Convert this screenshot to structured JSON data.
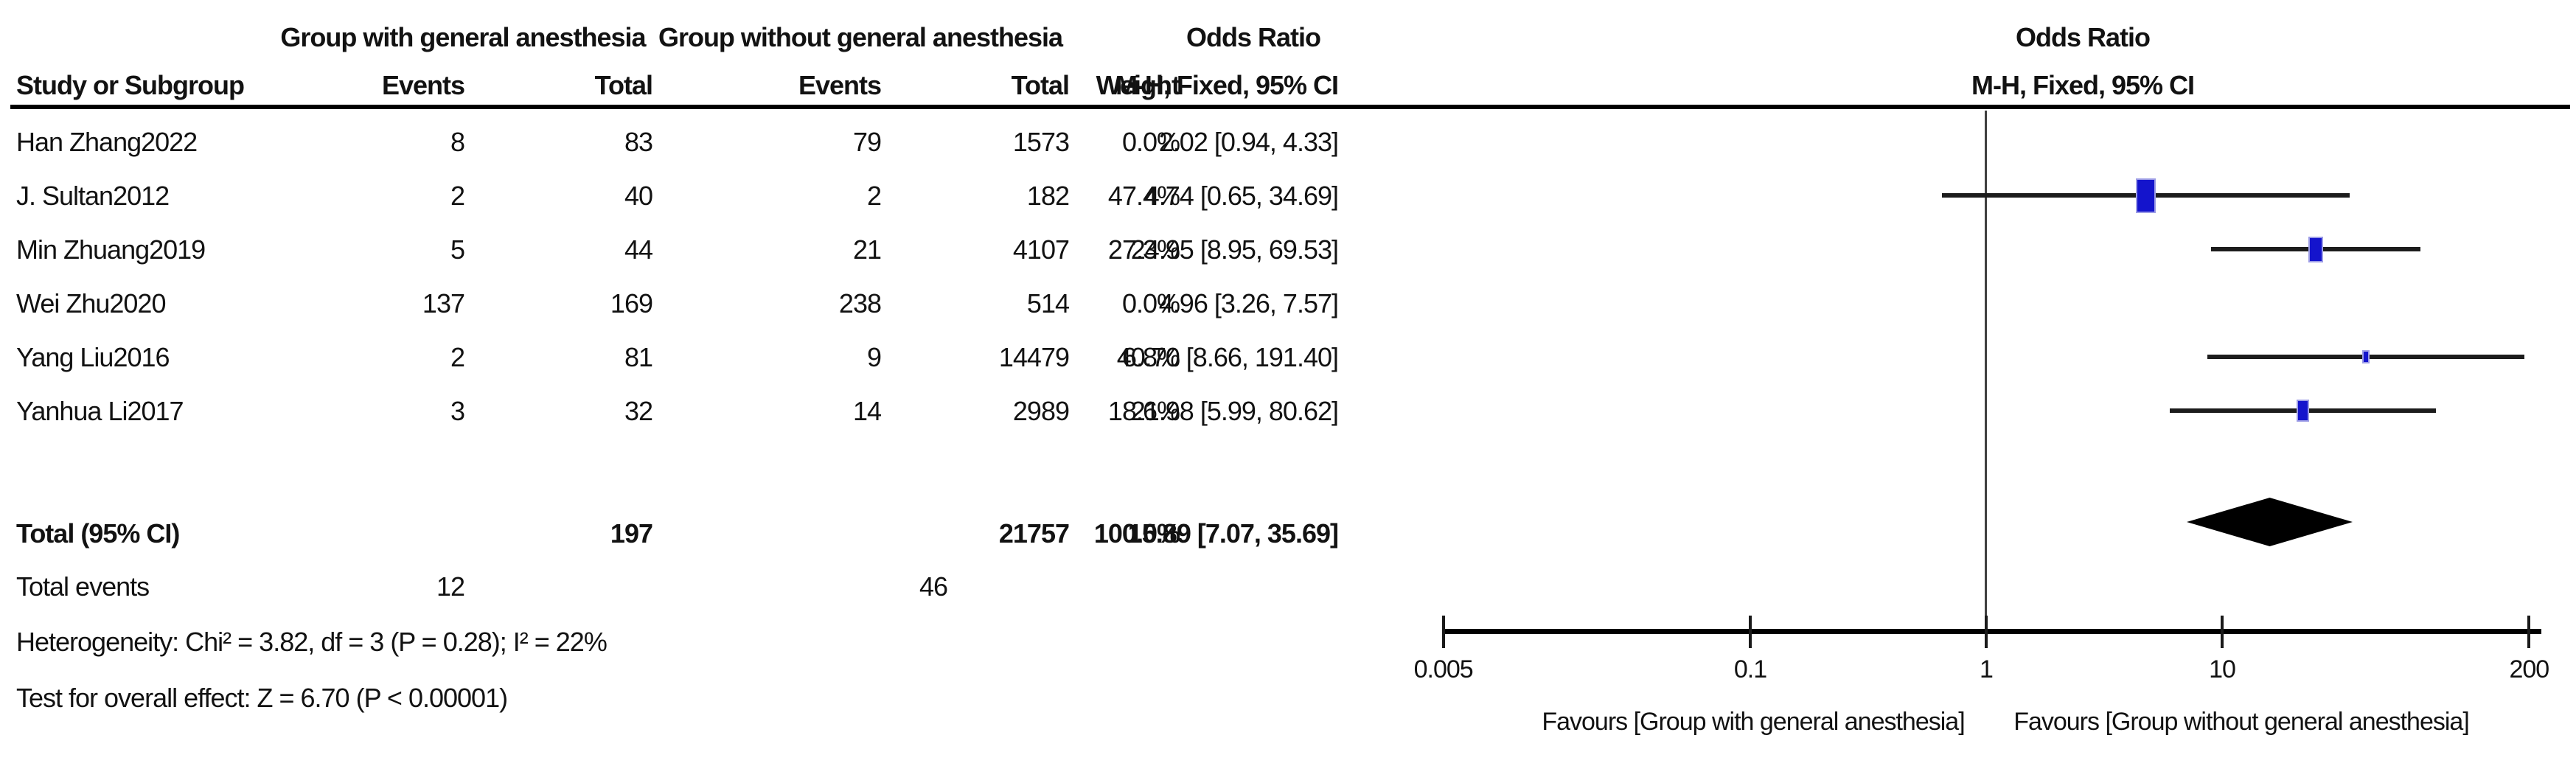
{
  "header": {
    "group1": "Group with general anesthesia",
    "group2": "Group without general anesthesia",
    "odds_ratio": "Odds Ratio",
    "method": "M-H, Fixed, 95% CI",
    "col_study": "Study or Subgroup",
    "col_events": "Events",
    "col_total": "Total",
    "col_weight": "Weight"
  },
  "rows": [
    {
      "study": "Han Zhang2022",
      "e1": "8",
      "t1": "83",
      "e2": "79",
      "t2": "1573",
      "weight": "0.0%",
      "or_text": "2.02 [0.94, 4.33]"
    },
    {
      "study": "J. Sultan2012",
      "e1": "2",
      "t1": "40",
      "e2": "2",
      "t2": "182",
      "weight": "47.4%",
      "or_text": "4.74 [0.65, 34.69]"
    },
    {
      "study": "Min Zhuang2019",
      "e1": "5",
      "t1": "44",
      "e2": "21",
      "t2": "4107",
      "weight": "27.3%",
      "or_text": "24.95 [8.95, 69.53]"
    },
    {
      "study": "Wei Zhu2020",
      "e1": "137",
      "t1": "169",
      "e2": "238",
      "t2": "514",
      "weight": "0.0%",
      "or_text": "4.96 [3.26, 7.57]"
    },
    {
      "study": "Yang Liu2016",
      "e1": "2",
      "t1": "81",
      "e2": "9",
      "t2": "14479",
      "weight": "6.8%",
      "or_text": "40.70 [8.66, 191.40]"
    },
    {
      "study": "Yanhua Li2017",
      "e1": "3",
      "t1": "32",
      "e2": "14",
      "t2": "2989",
      "weight": "18.6%",
      "or_text": "21.98 [5.99, 80.62]"
    }
  ],
  "total": {
    "label": "Total (95% CI)",
    "t1": "197",
    "t2": "21757",
    "weight": "100.0%",
    "or_text": "15.89 [7.07, 35.69]"
  },
  "total_events": {
    "label": "Total events",
    "e1": "12",
    "e2": "46"
  },
  "heterogeneity": "Heterogeneity: Chi² = 3.82, df = 3 (P = 0.28); I² = 22%",
  "overall_effect": "Test for overall effect: Z = 6.70 (P < 0.00001)",
  "favours_left": "Favours [Group with general anesthesia]",
  "favours_right": "Favours [Group without general anesthesia]",
  "chart_data": {
    "type": "scatter",
    "subtype": "forest-plot",
    "title": "Odds Ratio",
    "method": "M-H, Fixed, 95% CI",
    "x_scale": "log",
    "x_range": [
      0.005,
      200
    ],
    "x_ticks": [
      0.005,
      0.1,
      1,
      10,
      200
    ],
    "x_tick_labels": [
      "0.005",
      "0.1",
      "1",
      "10",
      "200"
    ],
    "null_line": 1,
    "studies": [
      {
        "name": "Han Zhang2022",
        "or": 2.02,
        "ci_low": 0.94,
        "ci_high": 4.33,
        "weight": 0.0,
        "plotted": false
      },
      {
        "name": "J. Sultan2012",
        "or": 4.74,
        "ci_low": 0.65,
        "ci_high": 34.69,
        "weight": 47.4,
        "plotted": true
      },
      {
        "name": "Min Zhuang2019",
        "or": 24.95,
        "ci_low": 8.95,
        "ci_high": 69.53,
        "weight": 27.3,
        "plotted": true
      },
      {
        "name": "Wei Zhu2020",
        "or": 4.96,
        "ci_low": 3.26,
        "ci_high": 7.57,
        "weight": 0.0,
        "plotted": false
      },
      {
        "name": "Yang Liu2016",
        "or": 40.7,
        "ci_low": 8.66,
        "ci_high": 191.4,
        "weight": 6.8,
        "plotted": true
      },
      {
        "name": "Yanhua Li2017",
        "or": 21.98,
        "ci_low": 5.99,
        "ci_high": 80.62,
        "weight": 18.6,
        "plotted": true
      }
    ],
    "pooled": {
      "or": 15.89,
      "ci_low": 7.07,
      "ci_high": 35.69,
      "weight": 100.0
    },
    "marker_color": "#1414cc",
    "diamond_color": "#000000"
  }
}
